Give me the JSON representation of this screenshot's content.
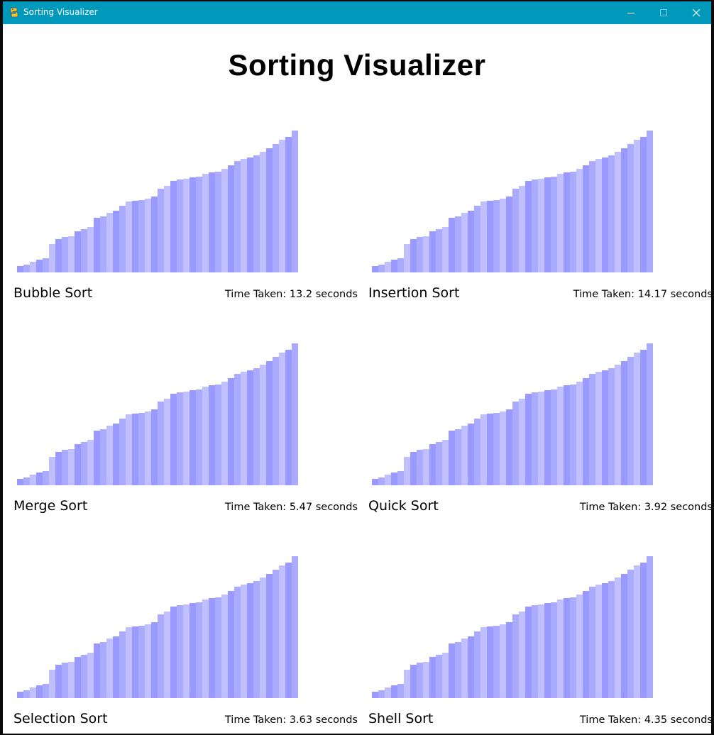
{
  "window": {
    "title": "Sorting Visualizer",
    "titlebar_color": "#0099bc",
    "buttons": {
      "minimize": "minimize-icon",
      "maximize": "maximize-icon",
      "close": "close-icon"
    }
  },
  "page": {
    "title": "Sorting Visualizer"
  },
  "colors": {
    "bar_dark": "#9999ff",
    "bar_mid": "#aaaaff",
    "bar_light": "#c0c0ff"
  },
  "time_prefix": "Time Taken: ",
  "time_suffix": " seconds",
  "panels": [
    {
      "name": "Bubble Sort",
      "time": "13.2"
    },
    {
      "name": "Insertion Sort",
      "time": "14.17"
    },
    {
      "name": "Merge Sort",
      "time": "5.47"
    },
    {
      "name": "Quick Sort",
      "time": "3.92"
    },
    {
      "name": "Selection Sort",
      "time": "3.63"
    },
    {
      "name": "Shell Sort",
      "time": "4.35"
    }
  ],
  "chart_data": {
    "type": "bar",
    "description_of_values": "sorted array heights (same for every panel)",
    "values": [
      9,
      11,
      15,
      18,
      20,
      40,
      47,
      50,
      51,
      58,
      61,
      64,
      77,
      79,
      84,
      87,
      94,
      100,
      101,
      102,
      104,
      107,
      118,
      122,
      129,
      131,
      132,
      134,
      135,
      139,
      141,
      142,
      146,
      151,
      157,
      160,
      162,
      165,
      170,
      175,
      181,
      187,
      191,
      200
    ],
    "ylim": [
      0,
      200
    ]
  }
}
